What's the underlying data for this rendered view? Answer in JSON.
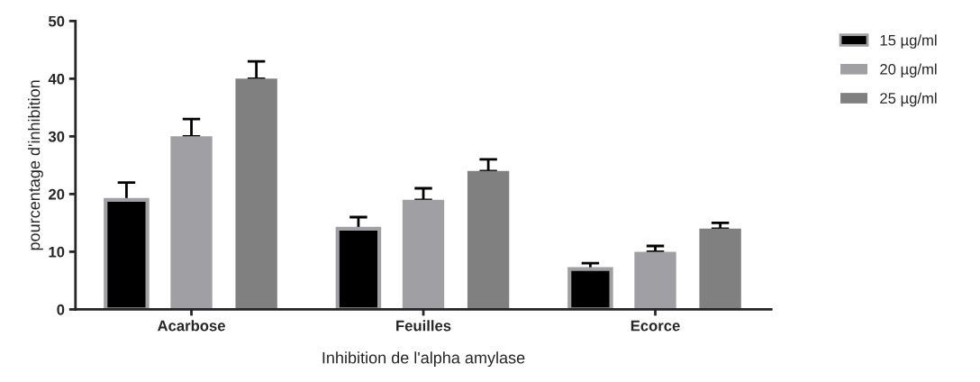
{
  "chart_data": {
    "type": "bar",
    "xlabel": "Inhibition de l'alpha amylase",
    "ylabel": "pourcentage d'inhibition",
    "categories": [
      "Acarbose",
      "Feuilles",
      "Ecorce"
    ],
    "series": [
      {
        "name": "15 µg/ml",
        "color": "#000000",
        "values": [
          19,
          14,
          7
        ],
        "errors": [
          [
            19,
            22
          ],
          [
            14,
            16
          ],
          [
            7,
            8
          ]
        ]
      },
      {
        "name": "20 µg/ml",
        "color": "#a0a0a4",
        "values": [
          30,
          19,
          10
        ],
        "errors": [
          [
            30,
            33
          ],
          [
            19,
            21
          ],
          [
            10,
            11
          ]
        ]
      },
      {
        "name": "25 µg/ml",
        "color": "#808080",
        "values": [
          40,
          24,
          14
        ],
        "errors": [
          [
            40,
            43
          ],
          [
            24,
            26
          ],
          [
            14,
            15
          ]
        ]
      }
    ],
    "ylim": [
      0,
      50
    ],
    "yticks": [
      0,
      10,
      20,
      30,
      40,
      50
    ],
    "grid": false,
    "legend": "top right"
  }
}
